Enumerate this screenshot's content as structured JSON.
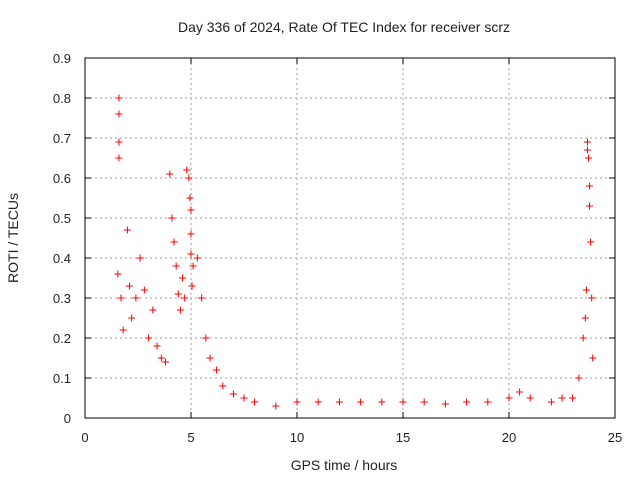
{
  "chart_data": {
    "type": "scatter",
    "title": "Day 336 of 2024, Rate Of TEC Index for receiver scrz",
    "xlabel": "GPS time / hours",
    "ylabel": "ROTI / TECUs",
    "xlim": [
      0,
      25
    ],
    "ylim": [
      0,
      0.9
    ],
    "xticks": [
      0,
      5,
      10,
      15,
      20,
      25
    ],
    "yticks": [
      0,
      0.1,
      0.2,
      0.3,
      0.4,
      0.5,
      0.6,
      0.7,
      0.8,
      0.9
    ],
    "grid": true,
    "marker": "+",
    "marker_color": "#ff0000",
    "series": [
      {
        "name": "ROTI",
        "x": [
          1.6,
          1.6,
          1.6,
          1.6,
          1.55,
          1.7,
          1.8,
          2.0,
          2.1,
          2.2,
          2.4,
          2.6,
          2.8,
          3.0,
          3.2,
          3.4,
          3.6,
          3.8,
          4.0,
          4.1,
          4.2,
          4.3,
          4.4,
          4.5,
          4.6,
          4.7,
          4.8,
          4.9,
          4.95,
          5.0,
          5.0,
          5.0,
          5.05,
          5.1,
          5.3,
          5.5,
          5.7,
          5.9,
          6.2,
          6.5,
          7.0,
          7.5,
          8.0,
          9.0,
          10.0,
          11.0,
          12.0,
          13.0,
          14.0,
          15.0,
          16.0,
          17.0,
          18.0,
          19.0,
          20.0,
          20.5,
          21.0,
          22.0,
          22.5,
          23.0,
          23.3,
          23.5,
          23.6,
          23.65,
          23.7,
          23.7,
          23.75,
          23.8,
          23.8,
          23.85,
          23.9,
          23.95
        ],
        "y": [
          0.8,
          0.76,
          0.69,
          0.65,
          0.36,
          0.3,
          0.22,
          0.47,
          0.33,
          0.25,
          0.3,
          0.4,
          0.32,
          0.2,
          0.27,
          0.18,
          0.15,
          0.14,
          0.61,
          0.5,
          0.44,
          0.38,
          0.31,
          0.27,
          0.35,
          0.3,
          0.62,
          0.6,
          0.55,
          0.52,
          0.46,
          0.41,
          0.33,
          0.38,
          0.4,
          0.3,
          0.2,
          0.15,
          0.12,
          0.08,
          0.06,
          0.05,
          0.04,
          0.03,
          0.04,
          0.04,
          0.04,
          0.04,
          0.04,
          0.04,
          0.04,
          0.035,
          0.04,
          0.04,
          0.05,
          0.065,
          0.05,
          0.04,
          0.05,
          0.05,
          0.1,
          0.2,
          0.25,
          0.32,
          0.69,
          0.67,
          0.65,
          0.58,
          0.53,
          0.44,
          0.3,
          0.15
        ]
      }
    ]
  }
}
